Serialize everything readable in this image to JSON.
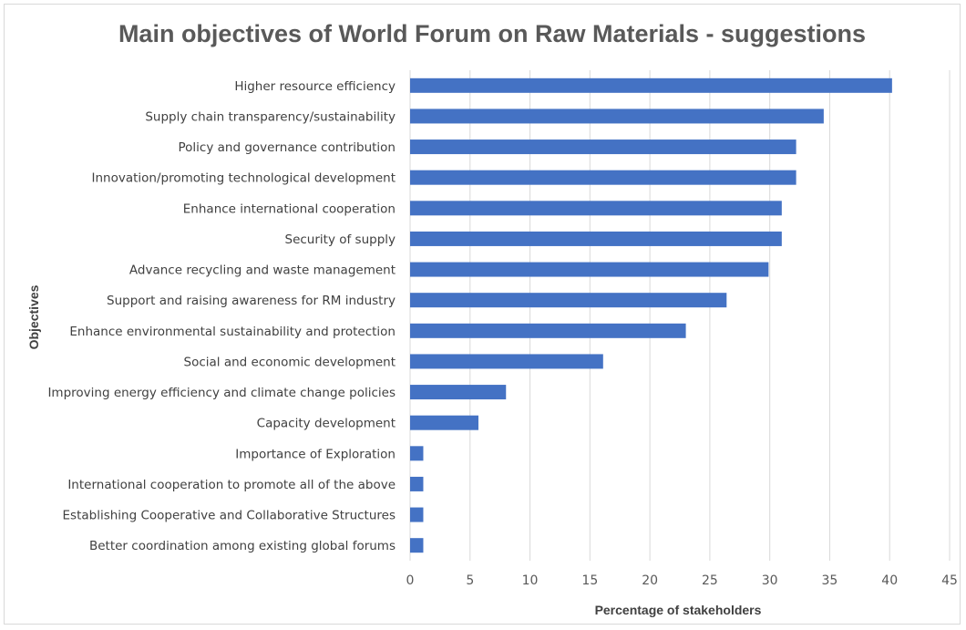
{
  "chart_data": {
    "type": "bar",
    "orientation": "horizontal",
    "title": "Main objectives of World Forum on Raw Materials - suggestions",
    "xlabel": "Percentage of stakeholders",
    "ylabel": "Objectives",
    "xlim": [
      0,
      45
    ],
    "xticks": [
      "0",
      "5",
      "10",
      "15",
      "20",
      "25",
      "30",
      "35",
      "40",
      "45"
    ],
    "grid": true,
    "bar_color": "#4472c4",
    "categories": [
      "Higher resource efficiency",
      "Supply chain transparency/sustainability",
      "Policy and governance contribution",
      "Innovation/promoting technological development",
      "Enhance international cooperation",
      "Security of supply ",
      "Advance recycling and waste management",
      "Support and raising awareness for RM industry",
      "Enhance environmental sustainability and protection",
      "Social and economic development",
      "Improving energy efficiency and climate change policies",
      "Capacity development",
      "Importance of Exploration",
      "International cooperation to promote all of the above",
      "Establishing Cooperative and Collaborative Structures",
      "Better coordination among existing global forums"
    ],
    "values": [
      40.2,
      34.5,
      32.2,
      32.2,
      31.0,
      31.0,
      29.9,
      26.4,
      23.0,
      16.1,
      8.0,
      5.7,
      1.1,
      1.1,
      1.1,
      1.1
    ]
  }
}
